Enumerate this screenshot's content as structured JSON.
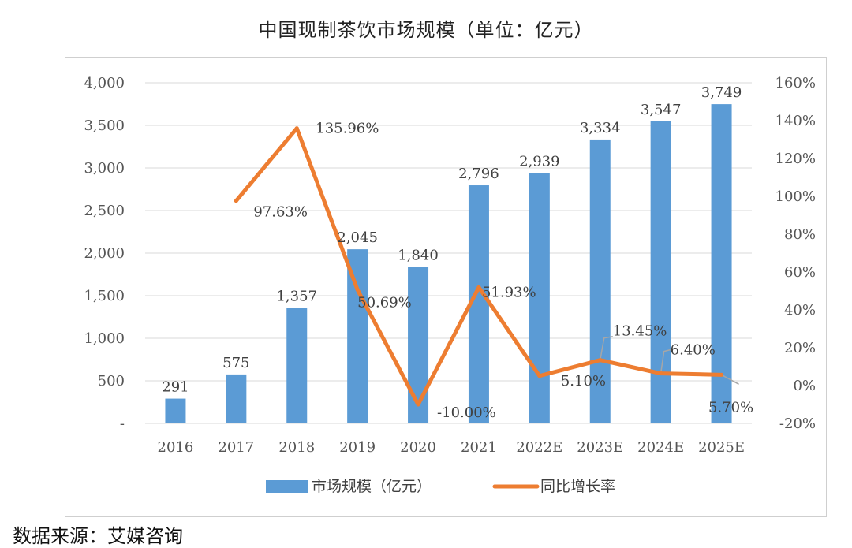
{
  "title": "中国现制茶饮市场规模（单位：亿元）",
  "source": "数据来源：艾媒咨询",
  "colors": {
    "bar": "#5b9bd5",
    "line": "#ed7d31",
    "grid": "#d9d9d9",
    "leader": "#a6a6a6"
  },
  "chart_data": {
    "type": "bar+line",
    "categories": [
      "2016",
      "2017",
      "2018",
      "2019",
      "2020",
      "2021",
      "2022E",
      "2023E",
      "2024E",
      "2025E"
    ],
    "series": [
      {
        "name": "市场规模（亿元）",
        "kind": "bar",
        "axis": "left",
        "values": [
          291,
          575,
          1357,
          2045,
          1840,
          2796,
          2939,
          3334,
          3547,
          3749
        ],
        "labels": [
          "291",
          "575",
          "1,357",
          "2,045",
          "1,840",
          "2,796",
          "2,939",
          "3,334",
          "3,547",
          "3,749"
        ]
      },
      {
        "name": "同比增长率",
        "kind": "line",
        "axis": "right",
        "values": [
          null,
          97.63,
          135.96,
          50.69,
          -10.0,
          51.93,
          5.1,
          13.45,
          6.4,
          5.7
        ],
        "labels": [
          "",
          "97.63%",
          "135.96%",
          "50.69%",
          "-10.00%",
          "51.93%",
          "5.10%",
          "13.45%",
          "6.40%",
          "5.70%"
        ]
      }
    ],
    "left_axis": {
      "ticks": [
        "-",
        "500",
        "1,000",
        "1,500",
        "2,000",
        "2,500",
        "3,000",
        "3,500",
        "4,000"
      ],
      "min": 0,
      "max": 4000
    },
    "right_axis": {
      "ticks": [
        "-20%",
        "0%",
        "20%",
        "40%",
        "60%",
        "80%",
        "100%",
        "120%",
        "140%",
        "160%"
      ],
      "min": -20,
      "max": 160
    },
    "legend": [
      "市场规模（亿元）",
      "同比增长率"
    ],
    "legend_position": "bottom",
    "grid": true
  }
}
